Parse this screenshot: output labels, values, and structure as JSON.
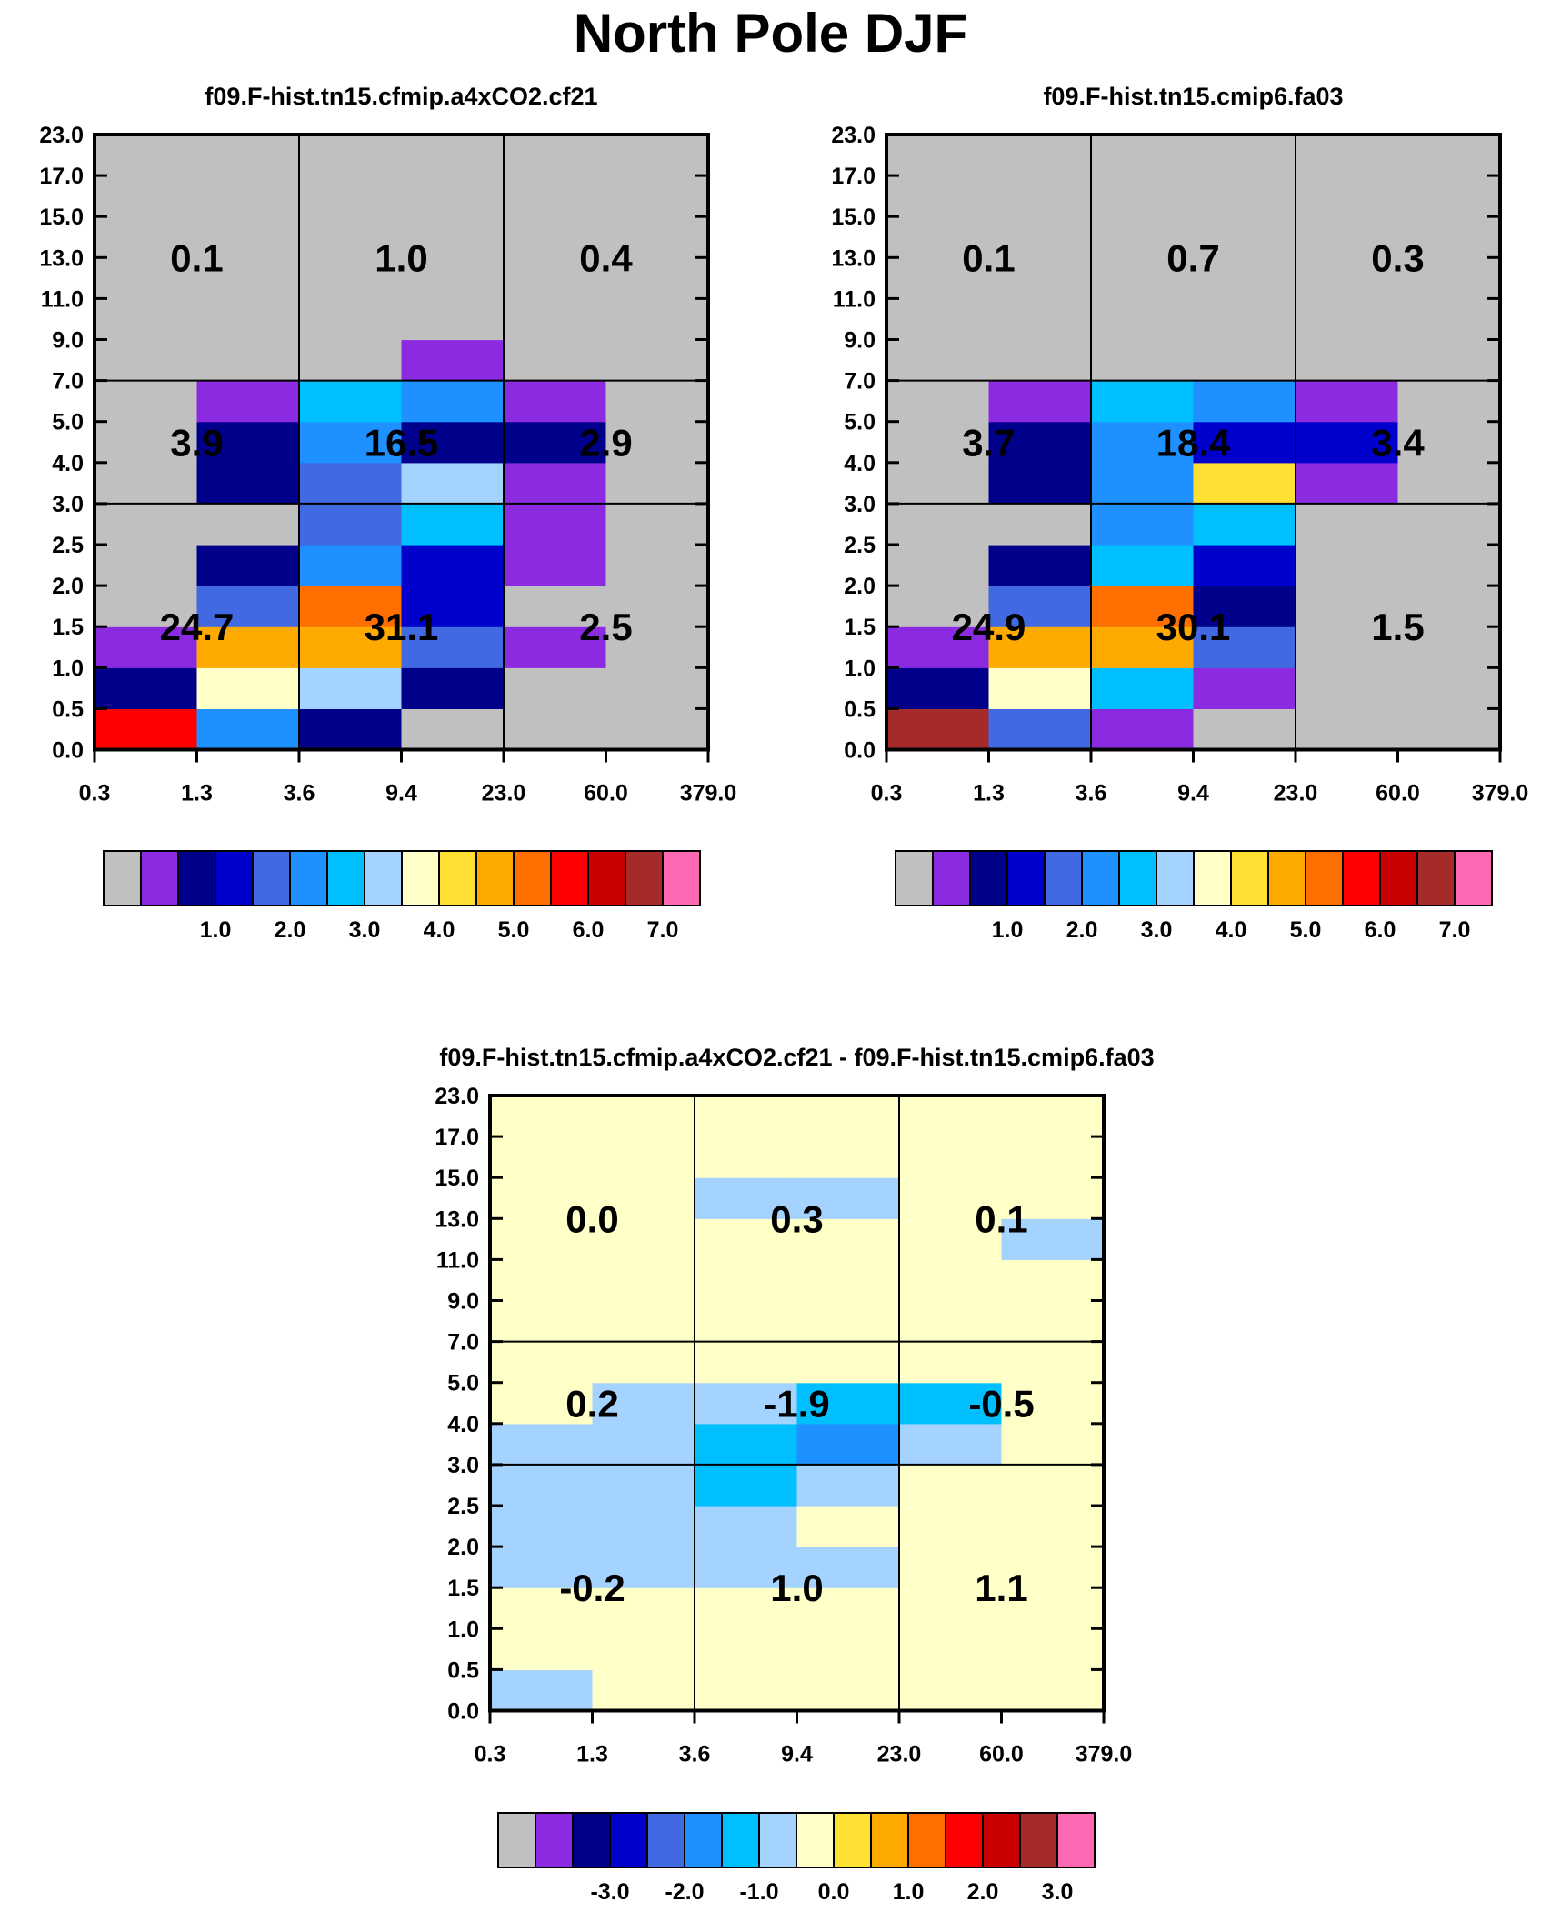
{
  "title": "North Pole DJF",
  "colors": {
    "levels": [
      "#c0c0c0",
      "#8a2be2",
      "#00008b",
      "#0000cd",
      "#4169e1",
      "#1e90ff",
      "#00bfff",
      "#a4d3ff",
      "#ffffc8",
      "#ffe133",
      "#ffaa00",
      "#ff6f00",
      "#ff0000",
      "#c80000",
      "#a52a2a",
      "#ff69b4"
    ]
  },
  "chart_data": [
    {
      "type": "heatmap",
      "title": "f09.F-hist.tn15.cfmip.a4xCO2.cf21",
      "x_ticks": [
        "0.3",
        "1.3",
        "3.6",
        "9.4",
        "23.0",
        "60.0",
        "379.0"
      ],
      "y_ticks": [
        "0.0",
        "0.5",
        "1.0",
        "1.5",
        "2.0",
        "2.5",
        "3.0",
        "4.0",
        "5.0",
        "7.0",
        "9.0",
        "11.0",
        "13.0",
        "15.0",
        "17.0",
        "23.0"
      ],
      "cells": [
        [
          12,
          5,
          2,
          0,
          0,
          0
        ],
        [
          2,
          8,
          7,
          2,
          0,
          0
        ],
        [
          1,
          10,
          10,
          4,
          1,
          0
        ],
        [
          0,
          4,
          11,
          3,
          0,
          0
        ],
        [
          0,
          2,
          5,
          3,
          1,
          0
        ],
        [
          0,
          0,
          4,
          6,
          1,
          0
        ],
        [
          0,
          2,
          4,
          7,
          1,
          0
        ],
        [
          0,
          2,
          5,
          2,
          2,
          0
        ],
        [
          0,
          1,
          6,
          5,
          1,
          0
        ],
        [
          0,
          0,
          0,
          1,
          0,
          0
        ],
        [
          0,
          0,
          0,
          0,
          0,
          0
        ],
        [
          0,
          0,
          0,
          0,
          0,
          0
        ],
        [
          0,
          0,
          0,
          0,
          0,
          0
        ],
        [
          0,
          0,
          0,
          0,
          0,
          0
        ],
        [
          0,
          0,
          0,
          0,
          0,
          0
        ]
      ],
      "group_values": [
        [
          "24.7",
          "31.1",
          "2.5"
        ],
        [
          "3.9",
          "16.5",
          "2.9"
        ],
        [
          "0.1",
          "1.0",
          "0.4"
        ]
      ],
      "colorbar_labels": [
        "1.0",
        "2.0",
        "3.0",
        "4.0",
        "5.0",
        "6.0",
        "7.0"
      ]
    },
    {
      "type": "heatmap",
      "title": "f09.F-hist.tn15.cmip6.fa03",
      "x_ticks": [
        "0.3",
        "1.3",
        "3.6",
        "9.4",
        "23.0",
        "60.0",
        "379.0"
      ],
      "y_ticks": [
        "0.0",
        "0.5",
        "1.0",
        "1.5",
        "2.0",
        "2.5",
        "3.0",
        "4.0",
        "5.0",
        "7.0",
        "9.0",
        "11.0",
        "13.0",
        "15.0",
        "17.0",
        "23.0"
      ],
      "cells": [
        [
          14,
          4,
          1,
          0,
          0,
          0
        ],
        [
          2,
          8,
          6,
          1,
          0,
          0
        ],
        [
          1,
          10,
          10,
          4,
          0,
          0
        ],
        [
          0,
          4,
          11,
          2,
          0,
          0
        ],
        [
          0,
          2,
          6,
          3,
          0,
          0
        ],
        [
          0,
          0,
          5,
          6,
          0,
          0
        ],
        [
          0,
          2,
          5,
          9,
          1,
          0
        ],
        [
          0,
          2,
          5,
          3,
          3,
          0
        ],
        [
          0,
          1,
          6,
          5,
          1,
          0
        ],
        [
          0,
          0,
          0,
          0,
          0,
          0
        ],
        [
          0,
          0,
          0,
          0,
          0,
          0
        ],
        [
          0,
          0,
          0,
          0,
          0,
          0
        ],
        [
          0,
          0,
          0,
          0,
          0,
          0
        ],
        [
          0,
          0,
          0,
          0,
          0,
          0
        ],
        [
          0,
          0,
          0,
          0,
          0,
          0
        ]
      ],
      "group_values": [
        [
          "24.9",
          "30.1",
          "1.5"
        ],
        [
          "3.7",
          "18.4",
          "3.4"
        ],
        [
          "0.1",
          "0.7",
          "0.3"
        ]
      ],
      "colorbar_labels": [
        "1.0",
        "2.0",
        "3.0",
        "4.0",
        "5.0",
        "6.0",
        "7.0"
      ]
    },
    {
      "type": "heatmap",
      "title": "f09.F-hist.tn15.cfmip.a4xCO2.cf21 - f09.F-hist.tn15.cmip6.fa03",
      "x_ticks": [
        "0.3",
        "1.3",
        "3.6",
        "9.4",
        "23.0",
        "60.0",
        "379.0"
      ],
      "y_ticks": [
        "0.0",
        "0.5",
        "1.0",
        "1.5",
        "2.0",
        "2.5",
        "3.0",
        "4.0",
        "5.0",
        "7.0",
        "9.0",
        "11.0",
        "13.0",
        "15.0",
        "17.0",
        "23.0"
      ],
      "cells": [
        [
          7,
          8,
          8,
          8,
          8,
          8
        ],
        [
          8,
          8,
          8,
          8,
          8,
          8
        ],
        [
          8,
          8,
          8,
          8,
          8,
          8
        ],
        [
          7,
          7,
          7,
          7,
          8,
          8
        ],
        [
          7,
          7,
          7,
          8,
          8,
          8
        ],
        [
          7,
          7,
          6,
          7,
          8,
          8
        ],
        [
          7,
          7,
          6,
          5,
          7,
          8
        ],
        [
          8,
          7,
          7,
          6,
          6,
          8
        ],
        [
          8,
          8,
          8,
          8,
          8,
          8
        ],
        [
          8,
          8,
          8,
          8,
          8,
          8
        ],
        [
          8,
          8,
          8,
          8,
          8,
          8
        ],
        [
          8,
          8,
          8,
          8,
          8,
          7
        ],
        [
          8,
          8,
          7,
          7,
          8,
          8
        ],
        [
          8,
          8,
          8,
          8,
          8,
          8
        ],
        [
          8,
          8,
          8,
          8,
          8,
          8
        ]
      ],
      "group_values": [
        [
          "-0.2",
          "1.0",
          "1.1"
        ],
        [
          "0.2",
          "-1.9",
          "-0.5"
        ],
        [
          "0.0",
          "0.3",
          "0.1"
        ]
      ],
      "colorbar_labels": [
        "-3.0",
        "-2.0",
        "-1.0",
        "0.0",
        "1.0",
        "2.0",
        "3.0"
      ]
    }
  ]
}
